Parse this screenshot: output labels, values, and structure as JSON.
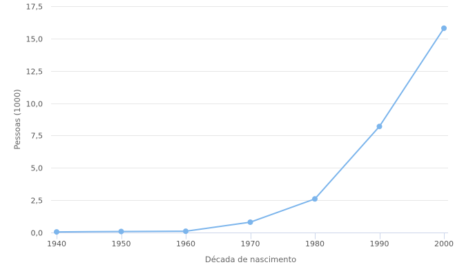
{
  "chart_data": {
    "type": "line",
    "xlabel": "Década de nascimento",
    "ylabel": "Pessoas (1000)",
    "x": [
      1940,
      1950,
      1960,
      1970,
      1980,
      1990,
      2000
    ],
    "x_tick_labels": [
      "1940",
      "1950",
      "1960",
      "1970",
      "1980",
      "1990",
      "2000"
    ],
    "series": [
      {
        "values": [
          0.05,
          0.08,
          0.1,
          0.8,
          2.6,
          8.2,
          15.8
        ]
      }
    ],
    "xlim": [
      1940,
      2000
    ],
    "ylim": [
      0,
      17.5
    ],
    "y_ticks": [
      0,
      2.5,
      5,
      7.5,
      10,
      12.5,
      15,
      17.5
    ],
    "y_tick_labels": [
      "0,0",
      "2,5",
      "5,0",
      "7,5",
      "10,0",
      "12,5",
      "15,0",
      "17,5"
    ],
    "grid": true,
    "colors": {
      "line": "#7cb5ec",
      "grid": "#e6e6e6",
      "axis": "#ccd6eb"
    }
  }
}
